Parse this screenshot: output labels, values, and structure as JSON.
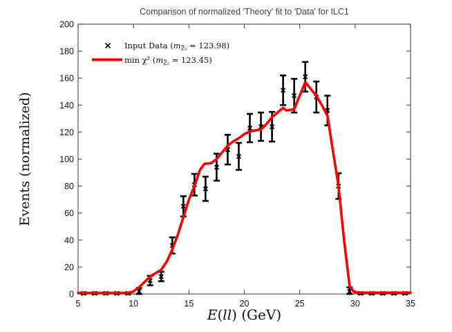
{
  "chart_data": {
    "type": "line",
    "title": "Comparison of normalized 'Theory' fit to 'Data' for ILC1",
    "ylabel": "Events (normalized)",
    "xlabel_plain": "E(ll) (GeV)",
    "xlabel_parts": {
      "e": "E",
      "open": "(",
      "ll": "ll",
      "close": ") (GeV)"
    },
    "xlim": [
      5,
      35
    ],
    "ylim": [
      0,
      200
    ],
    "xticks": [
      5,
      10,
      15,
      20,
      25,
      30,
      35
    ],
    "yticks": [
      0,
      20,
      40,
      60,
      80,
      100,
      120,
      140,
      160,
      180,
      200
    ],
    "grid": false,
    "legend_position": "top-left-inside",
    "colors": {
      "theory_line": "#ff0000",
      "data_points": "#000000",
      "frame": "#555555",
      "title": "#3f3f3f"
    },
    "series": [
      {
        "name": "Input Data (mZ̃₂ = 123.98)",
        "type": "errorbar",
        "marker": "x",
        "color": "#000000",
        "x": [
          5.5,
          6.5,
          7.5,
          8.5,
          9.5,
          10.5,
          11.5,
          12.5,
          13.5,
          14.5,
          15.5,
          16.5,
          17.5,
          18.5,
          19.5,
          20.5,
          21.5,
          22.5,
          23.5,
          24.5,
          25.5,
          26.5,
          27.5,
          28.5,
          29.5,
          30.5,
          31.5,
          32.5,
          33.5,
          34.5
        ],
        "y": [
          0.5,
          0.5,
          0.5,
          0.5,
          0.5,
          2,
          10,
          13,
          36,
          65,
          81,
          78,
          94,
          107,
          102,
          123,
          124,
          124,
          151,
          147,
          161,
          146,
          136,
          80,
          2,
          0.5,
          0.5,
          0.5,
          0.5,
          0.5
        ],
        "yerr": [
          0.7,
          0.7,
          0.7,
          0.7,
          0.7,
          2.5,
          3.5,
          3.5,
          6,
          7.5,
          8,
          9,
          10,
          11,
          10,
          10.5,
          10.5,
          11,
          11,
          12.5,
          11,
          11.5,
          11,
          9.5,
          3,
          0.7,
          0.7,
          0.7,
          0.7,
          0.7
        ]
      },
      {
        "name": "min χ² (mZ̃₂ = 123.45)",
        "type": "line",
        "color": "#ff0000",
        "points": [
          [
            5,
            0.8
          ],
          [
            9.5,
            0.8
          ],
          [
            10,
            2
          ],
          [
            10.5,
            5
          ],
          [
            11,
            9
          ],
          [
            11.5,
            13
          ],
          [
            12,
            15.5
          ],
          [
            12.5,
            18
          ],
          [
            13,
            24
          ],
          [
            13.5,
            33
          ],
          [
            14,
            44
          ],
          [
            14.5,
            57
          ],
          [
            15,
            70
          ],
          [
            15.5,
            80
          ],
          [
            16,
            92
          ],
          [
            16.4,
            96.5
          ],
          [
            17,
            97
          ],
          [
            17.5,
            100
          ],
          [
            18,
            105
          ],
          [
            18.5,
            110
          ],
          [
            19,
            113
          ],
          [
            19.5,
            115.5
          ],
          [
            20,
            118.5
          ],
          [
            20.5,
            120.5
          ],
          [
            21.5,
            122
          ],
          [
            22,
            126
          ],
          [
            22.5,
            131
          ],
          [
            23,
            134.5
          ],
          [
            23.5,
            138
          ],
          [
            23.8,
            136
          ],
          [
            24.5,
            137
          ],
          [
            25,
            147
          ],
          [
            25.5,
            157
          ],
          [
            26,
            152
          ],
          [
            26.5,
            147
          ],
          [
            27,
            140
          ],
          [
            27.5,
            132
          ],
          [
            28.5,
            80
          ],
          [
            29,
            40
          ],
          [
            29.5,
            6
          ],
          [
            29.9,
            1.5
          ],
          [
            30.5,
            1
          ],
          [
            35,
            1
          ]
        ]
      }
    ]
  },
  "legend": {
    "items": [
      {
        "marker": "x-marker",
        "prefix": "Input Data (",
        "var": "m",
        "sub": "Z̃₂",
        "suffix": " = 123.98)"
      },
      {
        "marker": "line-sample",
        "prefix": "min χ² (",
        "var": "m",
        "sub": "Z̃₂",
        "suffix": " = 123.45)"
      }
    ]
  }
}
